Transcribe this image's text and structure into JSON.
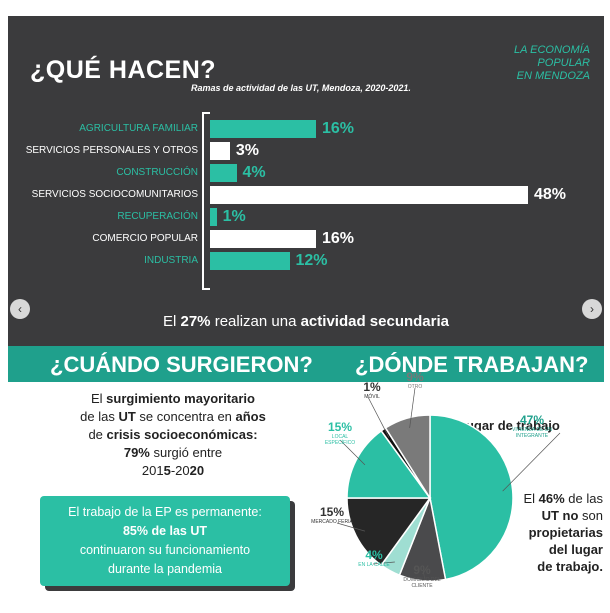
{
  "header": {
    "title": "¿QUÉ HACEN?",
    "brand_lines": [
      "LA ECONOMÍA",
      "POPULAR",
      "EN MENDOZA"
    ]
  },
  "chart_data": [
    {
      "type": "bar",
      "title": "Ramas de actividad de las UT, Mendoza, 2020-2021.",
      "categories": [
        "AGRICULTURA FAMILIAR",
        "SERVICIOS PERSONALES Y OTROS",
        "CONSTRUCCIÓN",
        "SERVICIOS SOCIOCOMUNITARIOS",
        "RECUPERACIÓN",
        "COMERCIO POPULAR",
        "INDUSTRIA"
      ],
      "values": [
        16,
        3,
        4,
        48,
        1,
        16,
        12
      ],
      "value_labels": [
        "16%",
        "3%",
        "4%",
        "48%",
        "1%",
        "16%",
        "12%"
      ],
      "colors": [
        "#2bbfa4",
        "#ffffff",
        "#2bbfa4",
        "#ffffff",
        "#2bbfa4",
        "#ffffff",
        "#2bbfa4"
      ],
      "orientation": "horizontal",
      "xlim": [
        0,
        48
      ],
      "grid": false
    },
    {
      "type": "pie",
      "title": "Lugar de trabajo",
      "labels": [
        "VIVIENDA DE UN INTEGRANTE",
        "DOMICILIO DEL CLIENTE",
        "EN LA CALLE",
        "MERCADO FERIA",
        "LOCAL ESPECÍFICO",
        "MÓVIL",
        "OTRO"
      ],
      "values": [
        47,
        9,
        4,
        15,
        15,
        1,
        9
      ],
      "value_labels": [
        "47%",
        "9%",
        "4%",
        "15%",
        "15%",
        "1%",
        "9%"
      ],
      "colors": [
        "#2bbfa4",
        "#4a4a4c",
        "#9fded2",
        "#262626",
        "#2bbfa4",
        "#111111",
        "#7a7a7a"
      ]
    }
  ],
  "secondary": {
    "text_prefix": "El ",
    "pct": "27%",
    "text_middle": " realizan una ",
    "text_strong": "actividad secundaria"
  },
  "nav": {
    "prev": "‹",
    "next": "›"
  },
  "sections": {
    "when_title": "¿CUÁNDO SURGIERON?",
    "where_title": "¿DÓNDE TRABAJAN?"
  },
  "when": {
    "l1a": "El ",
    "l1b": "surgimiento mayoritario",
    "l2a": "de las ",
    "l2b": "UT",
    "l2c": " se concentra en ",
    "l2d": "años",
    "l3a": "de ",
    "l3b": "crisis socioeconómicas:",
    "l4a": "79%",
    "l4b": " surgió entre",
    "l5a": "201",
    "l5b": "5",
    "l5c": "-20",
    "l5d": "20"
  },
  "when_box": {
    "l1": "El trabajo de la EP es permanente:",
    "l2": "85% de las UT",
    "l3": "continuaron su funcionamiento",
    "l4": "durante la pandemia"
  },
  "where": {
    "lugar": "Lugar de trabajo",
    "o1a": "El ",
    "o1b": "46%",
    "o1c": " de las",
    "o2a": "UT no",
    "o2b": " son",
    "o3": "propietarias",
    "o4": "del lugar",
    "o5": "de trabajo."
  }
}
